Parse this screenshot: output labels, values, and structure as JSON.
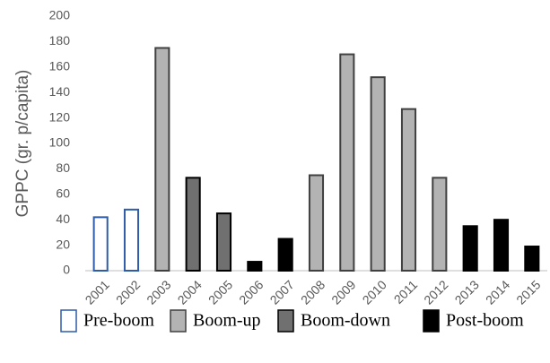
{
  "chart_data": {
    "type": "bar",
    "y_label": "GPPC (gr. p/capita)",
    "categories": [
      "2001",
      "2002",
      "2003",
      "2004",
      "2005",
      "2006",
      "2007",
      "2008",
      "2009",
      "2010",
      "2011",
      "2012",
      "2013",
      "2014",
      "2015"
    ],
    "series": [
      {
        "name": "Pre-boom",
        "color": "#ffffff",
        "edgecolor": "#2e5ca8",
        "values": [
          42,
          48,
          null,
          null,
          null,
          null,
          null,
          null,
          null,
          null,
          null,
          null,
          null,
          null,
          null
        ]
      },
      {
        "name": "Boom-up",
        "color": "#b3b3b3",
        "edgecolor": "#404040",
        "values": [
          null,
          null,
          175,
          null,
          null,
          null,
          null,
          75,
          170,
          152,
          127,
          73,
          null,
          null,
          null
        ]
      },
      {
        "name": "Boom-down",
        "color": "#707070",
        "edgecolor": "#000000",
        "values": [
          null,
          null,
          null,
          73,
          45,
          null,
          null,
          null,
          null,
          null,
          null,
          null,
          null,
          null,
          null
        ]
      },
      {
        "name": "Post-boom",
        "color": "#000000",
        "edgecolor": "#000000",
        "values": [
          null,
          null,
          null,
          null,
          null,
          7,
          25,
          null,
          null,
          null,
          null,
          null,
          35,
          40,
          19
        ]
      }
    ],
    "ylim": [
      0,
      200
    ],
    "yticks": [
      0,
      20,
      40,
      60,
      80,
      100,
      120,
      140,
      160,
      180,
      200
    ],
    "grid": false
  }
}
